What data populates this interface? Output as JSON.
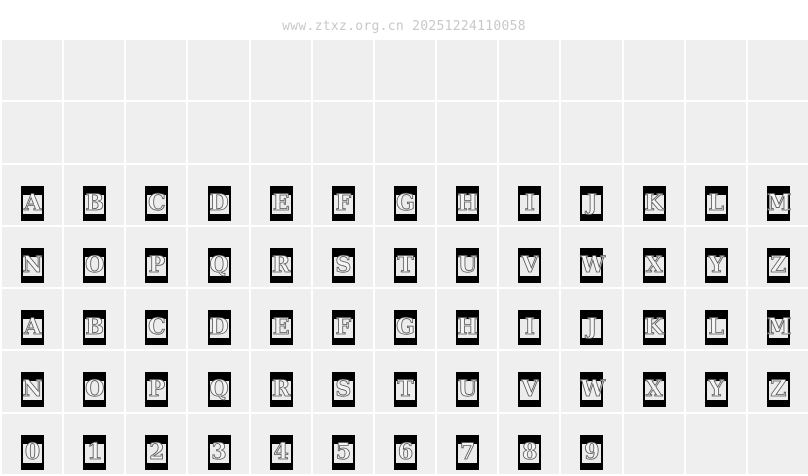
{
  "watermark": "www.ztxz.org.cn 20251224110058",
  "empty_rows": 2,
  "rows": [
    [
      "A",
      "B",
      "C",
      "D",
      "E",
      "F",
      "G",
      "H",
      "I",
      "J",
      "K",
      "L",
      "M"
    ],
    [
      "N",
      "O",
      "P",
      "Q",
      "R",
      "S",
      "T",
      "U",
      "V",
      "W",
      "X",
      "Y",
      "Z"
    ],
    [
      "a",
      "b",
      "c",
      "d",
      "e",
      "f",
      "g",
      "h",
      "i",
      "j",
      "k",
      "l",
      "m"
    ],
    [
      "n",
      "o",
      "p",
      "q",
      "r",
      "s",
      "t",
      "u",
      "v",
      "w",
      "x",
      "y",
      "z"
    ],
    [
      "0",
      "1",
      "2",
      "3",
      "4",
      "5",
      "6",
      "7",
      "8",
      "9"
    ]
  ]
}
